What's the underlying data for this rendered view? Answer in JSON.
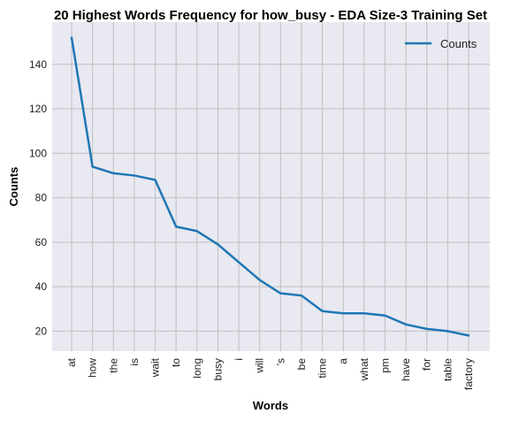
{
  "chart_data": {
    "type": "line",
    "title": "20 Highest Words Frequency for how_busy - EDA Size-3 Training Set",
    "xlabel": "Words",
    "ylabel": "Counts",
    "categories": [
      "at",
      "how",
      "the",
      "is",
      "wait",
      "to",
      "long",
      "busy",
      "i",
      "will",
      "'s",
      "be",
      "time",
      "a",
      "what",
      "pm",
      "have",
      "for",
      "table",
      "factory"
    ],
    "series": [
      {
        "name": "Counts",
        "color": "#1f77b4",
        "values": [
          152,
          94,
          91,
          90,
          88,
          67,
          65,
          59,
          51,
          43,
          37,
          36,
          29,
          28,
          28,
          27,
          23,
          21,
          20,
          18
        ]
      }
    ],
    "ylim": [
      11,
      159
    ],
    "yticks": [
      20,
      40,
      60,
      80,
      100,
      120,
      140
    ],
    "grid": true,
    "legend_position": "top-right",
    "plot_background": "#e8e9f1",
    "grid_color": "#c0c0c0"
  }
}
